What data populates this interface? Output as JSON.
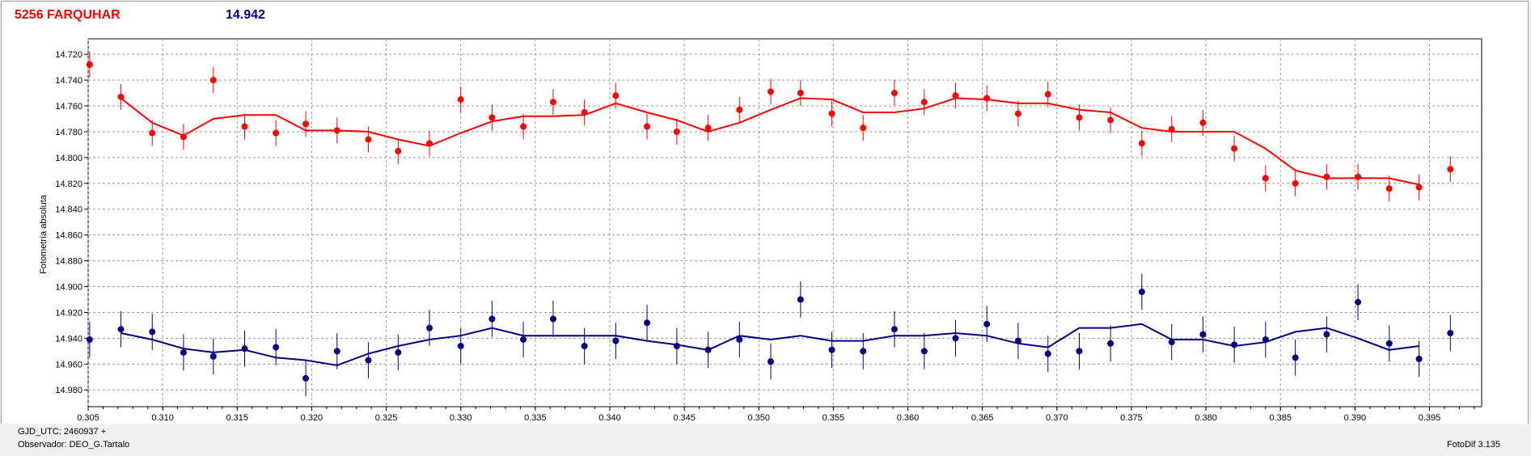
{
  "header": {
    "star_name": "5256 FARQUHAR",
    "comparison_value": "14.942"
  },
  "footer": {
    "gjd": "GJD_UTC: 2460937 +",
    "observer": "Observador: DEO_G.Tartalo",
    "version": "FotoDif 3.135"
  },
  "colors": {
    "target": "#ff0000",
    "comparison": "#000080",
    "grid": "#999999"
  },
  "chart_data": {
    "type": "scatter",
    "ylabel": "Fotometría absoluta",
    "xlabel": "",
    "xlim": [
      0.305,
      0.3985
    ],
    "ylim": [
      14.708,
      14.993
    ],
    "y_inverted": true,
    "grid": true,
    "x_ticks": [
      "0.305",
      "0.310",
      "0.315",
      "0.320",
      "0.325",
      "0.330",
      "0.335",
      "0.340",
      "0.345",
      "0.350",
      "0.355",
      "0.360",
      "0.365",
      "0.370",
      "0.375",
      "0.380",
      "0.385",
      "0.390",
      "0.395"
    ],
    "y_ticks": [
      "14.720",
      "14.740",
      "14.760",
      "14.780",
      "14.800",
      "14.820",
      "14.840",
      "14.860",
      "14.880",
      "14.900",
      "14.920",
      "14.940",
      "14.960",
      "14.980"
    ],
    "series": [
      {
        "color": "#ff0000",
        "x": [
          0.3051,
          0.3072,
          0.3093,
          0.3114,
          0.3134,
          0.3155,
          0.3176,
          0.3196,
          0.3217,
          0.3238,
          0.3258,
          0.3279,
          0.33,
          0.3321,
          0.3342,
          0.3362,
          0.3383,
          0.3404,
          0.3425,
          0.3445,
          0.3466,
          0.3487,
          0.3508,
          0.3528,
          0.3549,
          0.357,
          0.3591,
          0.3611,
          0.3632,
          0.3653,
          0.3674,
          0.3694,
          0.3715,
          0.3736,
          0.3757,
          0.3777,
          0.3798,
          0.3819,
          0.384,
          0.386,
          0.3881,
          0.3902,
          0.3923,
          0.3943,
          0.3964
        ],
        "y": [
          14.728,
          14.753,
          14.781,
          14.784,
          14.74,
          14.776,
          14.781,
          14.774,
          14.779,
          14.786,
          14.795,
          14.789,
          14.755,
          14.769,
          14.776,
          14.757,
          14.765,
          14.752,
          14.776,
          14.78,
          14.777,
          14.763,
          14.749,
          14.75,
          14.766,
          14.777,
          14.75,
          14.757,
          14.752,
          14.754,
          14.766,
          14.751,
          14.769,
          14.771,
          14.789,
          14.778,
          14.773,
          14.793,
          14.816,
          14.82,
          14.815,
          14.815,
          14.824,
          14.823,
          14.809
        ],
        "err": [
          0.01,
          0.01,
          0.01,
          0.01,
          0.01,
          0.01,
          0.01,
          0.01,
          0.01,
          0.01,
          0.01,
          0.01,
          0.01,
          0.01,
          0.01,
          0.01,
          0.01,
          0.01,
          0.01,
          0.01,
          0.01,
          0.01,
          0.01,
          0.01,
          0.01,
          0.01,
          0.01,
          0.01,
          0.01,
          0.01,
          0.01,
          0.01,
          0.01,
          0.01,
          0.01,
          0.01,
          0.01,
          0.01,
          0.01,
          0.01,
          0.01,
          0.01,
          0.01,
          0.01,
          0.01
        ],
        "trend_x": [
          0.3072,
          0.3093,
          0.3114,
          0.3134,
          0.3155,
          0.3176,
          0.3196,
          0.3217,
          0.3238,
          0.3258,
          0.3279,
          0.33,
          0.3321,
          0.3342,
          0.3362,
          0.3383,
          0.3404,
          0.3425,
          0.3445,
          0.3466,
          0.3487,
          0.3508,
          0.3528,
          0.3549,
          0.357,
          0.3591,
          0.3611,
          0.3632,
          0.3653,
          0.3674,
          0.3694,
          0.3715,
          0.3736,
          0.3757,
          0.3777,
          0.3798,
          0.3819,
          0.384,
          0.386,
          0.3881,
          0.3902,
          0.3923,
          0.3943
        ],
        "trend_y": [
          14.754,
          14.773,
          14.783,
          14.77,
          14.767,
          14.767,
          14.779,
          14.779,
          14.78,
          14.786,
          14.791,
          14.781,
          14.772,
          14.768,
          14.768,
          14.767,
          14.758,
          14.765,
          14.771,
          14.78,
          14.773,
          14.763,
          14.754,
          14.755,
          14.765,
          14.765,
          14.762,
          14.754,
          14.755,
          14.758,
          14.758,
          14.763,
          14.765,
          14.777,
          14.78,
          14.78,
          14.78,
          14.793,
          14.81,
          14.816,
          14.816,
          14.816,
          14.821
        ]
      },
      {
        "color": "#000080",
        "x": [
          0.3051,
          0.3072,
          0.3093,
          0.3114,
          0.3134,
          0.3155,
          0.3176,
          0.3196,
          0.3217,
          0.3238,
          0.3258,
          0.3279,
          0.33,
          0.3321,
          0.3342,
          0.3362,
          0.3383,
          0.3404,
          0.3425,
          0.3445,
          0.3466,
          0.3487,
          0.3508,
          0.3528,
          0.3549,
          0.357,
          0.3591,
          0.3611,
          0.3632,
          0.3653,
          0.3674,
          0.3694,
          0.3715,
          0.3736,
          0.3757,
          0.3777,
          0.3798,
          0.3819,
          0.384,
          0.386,
          0.3881,
          0.3902,
          0.3923,
          0.3943,
          0.3964
        ],
        "y": [
          14.941,
          14.933,
          14.935,
          14.951,
          14.954,
          14.948,
          14.947,
          14.971,
          14.95,
          14.957,
          14.951,
          14.932,
          14.946,
          14.925,
          14.941,
          14.925,
          14.946,
          14.942,
          14.928,
          14.946,
          14.949,
          14.941,
          14.958,
          14.91,
          14.949,
          14.95,
          14.933,
          14.95,
          14.94,
          14.929,
          14.942,
          14.952,
          14.95,
          14.944,
          14.904,
          14.943,
          14.937,
          14.945,
          14.941,
          14.955,
          14.937,
          14.912,
          14.944,
          14.956,
          14.936
        ],
        "err": [
          0.014,
          0.014,
          0.014,
          0.014,
          0.014,
          0.014,
          0.014,
          0.014,
          0.014,
          0.014,
          0.014,
          0.014,
          0.014,
          0.014,
          0.014,
          0.014,
          0.014,
          0.014,
          0.014,
          0.014,
          0.014,
          0.014,
          0.014,
          0.014,
          0.014,
          0.014,
          0.014,
          0.014,
          0.014,
          0.014,
          0.014,
          0.014,
          0.014,
          0.014,
          0.014,
          0.014,
          0.014,
          0.014,
          0.014,
          0.014,
          0.014,
          0.014,
          0.014,
          0.014,
          0.014
        ],
        "trend_x": [
          0.3072,
          0.3093,
          0.3114,
          0.3134,
          0.3155,
          0.3176,
          0.3196,
          0.3217,
          0.3238,
          0.3258,
          0.3279,
          0.33,
          0.3321,
          0.3342,
          0.3362,
          0.3383,
          0.3404,
          0.3425,
          0.3445,
          0.3466,
          0.3487,
          0.3508,
          0.3528,
          0.3549,
          0.357,
          0.3591,
          0.3611,
          0.3632,
          0.3653,
          0.3674,
          0.3694,
          0.3715,
          0.3736,
          0.3757,
          0.3777,
          0.3798,
          0.3819,
          0.384,
          0.386,
          0.3881,
          0.3902,
          0.3923,
          0.3943
        ],
        "trend_y": [
          14.936,
          14.941,
          14.948,
          14.951,
          14.949,
          14.955,
          14.957,
          14.961,
          14.952,
          14.946,
          14.941,
          14.938,
          14.932,
          14.938,
          14.938,
          14.938,
          14.938,
          14.942,
          14.945,
          14.949,
          14.938,
          14.941,
          14.938,
          14.942,
          14.942,
          14.938,
          14.938,
          14.936,
          14.938,
          14.944,
          14.947,
          14.932,
          14.932,
          14.929,
          14.941,
          14.941,
          14.946,
          14.943,
          14.935,
          14.932,
          14.94,
          14.949,
          14.946
        ]
      }
    ]
  }
}
